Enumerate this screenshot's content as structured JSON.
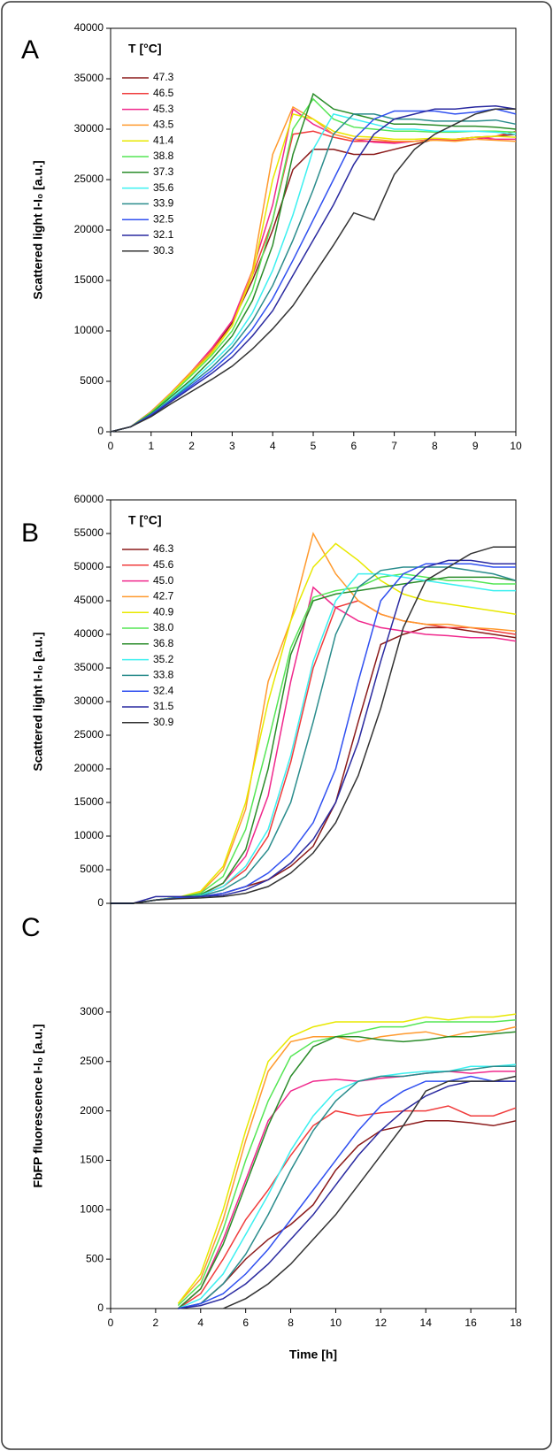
{
  "chart_data": [
    {
      "type": "line",
      "panel": "A",
      "legend_title": "T [°C]",
      "ylabel": "Scattered light I-I₀  [a.u.]",
      "x": [
        0,
        0.5,
        1,
        1.5,
        2,
        2.5,
        3,
        3.5,
        4,
        4.5,
        5,
        5.5,
        6,
        6.5,
        7,
        7.5,
        8,
        8.5,
        9,
        9.5,
        10
      ],
      "xlim": [
        0,
        10
      ],
      "xticks": [
        0,
        1,
        2,
        3,
        4,
        5,
        6,
        7,
        8,
        9,
        10
      ],
      "ylim": [
        0,
        40000
      ],
      "yticks": [
        0,
        5000,
        10000,
        15000,
        20000,
        25000,
        30000,
        35000,
        40000
      ],
      "series": [
        {
          "name": "47.3",
          "color": "#8b1a1a",
          "values": [
            0,
            500,
            2000,
            3800,
            5800,
            8000,
            10800,
            15000,
            20000,
            26000,
            28000,
            28000,
            27500,
            27500,
            28000,
            28500,
            29000,
            29000,
            29200,
            29300,
            29500
          ]
        },
        {
          "name": "46.5",
          "color": "#f03c3c",
          "values": [
            0,
            500,
            2000,
            3900,
            6000,
            8200,
            11000,
            15500,
            21000,
            29500,
            29800,
            29200,
            28800,
            28800,
            28700,
            28800,
            29000,
            28900,
            29000,
            29300,
            29800
          ]
        },
        {
          "name": "45.3",
          "color": "#f0288c",
          "values": [
            0,
            500,
            2000,
            3900,
            6000,
            8300,
            11000,
            16000,
            22500,
            32000,
            30500,
            29500,
            29000,
            28700,
            28600,
            28800,
            29000,
            29000,
            29200,
            29000,
            29000
          ]
        },
        {
          "name": "43.5",
          "color": "#ff9a2e",
          "values": [
            0,
            500,
            2000,
            3900,
            6000,
            8000,
            10500,
            16000,
            27500,
            32200,
            31000,
            29500,
            29000,
            29000,
            28800,
            28800,
            28900,
            28800,
            29000,
            28900,
            28800
          ]
        },
        {
          "name": "41.4",
          "color": "#e8e800",
          "values": [
            0,
            500,
            1900,
            3800,
            5800,
            7800,
            10500,
            15500,
            25000,
            31500,
            31000,
            29800,
            29300,
            29200,
            29000,
            29000,
            29100,
            29000,
            29200,
            29300,
            29200
          ]
        },
        {
          "name": "38.8",
          "color": "#55e655",
          "values": [
            0,
            500,
            1900,
            3700,
            5600,
            7600,
            10000,
            14000,
            21000,
            30000,
            33000,
            31000,
            30200,
            30000,
            29800,
            29800,
            29700,
            29700,
            29800,
            29800,
            29700
          ]
        },
        {
          "name": "37.3",
          "color": "#2a8c2a",
          "values": [
            0,
            500,
            1800,
            3500,
            5200,
            7200,
            9500,
            13000,
            18500,
            27500,
            33500,
            32000,
            31500,
            31000,
            30500,
            30500,
            30400,
            30300,
            30300,
            30200,
            30000
          ]
        },
        {
          "name": "35.6",
          "color": "#3cf0f0",
          "values": [
            0,
            500,
            1700,
            3300,
            5000,
            6800,
            8800,
            11800,
            16000,
            21500,
            28000,
            31500,
            31000,
            30500,
            30000,
            30000,
            29800,
            29800,
            29800,
            29700,
            29500
          ]
        },
        {
          "name": "33.9",
          "color": "#2a8c8c",
          "values": [
            0,
            500,
            1700,
            3200,
            4800,
            6400,
            8400,
            11000,
            14500,
            19000,
            24000,
            29500,
            31500,
            31500,
            31000,
            31000,
            30800,
            30800,
            30800,
            30900,
            30500
          ]
        },
        {
          "name": "32.5",
          "color": "#3050f0",
          "values": [
            0,
            500,
            1700,
            3100,
            4600,
            6100,
            7900,
            10200,
            13200,
            17000,
            21000,
            25000,
            29000,
            31000,
            31800,
            31800,
            31800,
            31500,
            31700,
            32000,
            31500
          ]
        },
        {
          "name": "32.1",
          "color": "#2a2aa0",
          "values": [
            0,
            500,
            1600,
            3000,
            4400,
            5800,
            7400,
            9500,
            12000,
            15500,
            19000,
            22500,
            26500,
            29500,
            31000,
            31500,
            32000,
            32000,
            32200,
            32300,
            32000
          ]
        },
        {
          "name": "30.3",
          "color": "#333333",
          "values": [
            0,
            500,
            1500,
            2800,
            4000,
            5200,
            6500,
            8200,
            10200,
            12500,
            15500,
            18500,
            21700,
            21000,
            25500,
            28000,
            29500,
            30500,
            31500,
            32000,
            32000
          ]
        }
      ]
    },
    {
      "type": "line",
      "panel": "B",
      "legend_title": "T [°C]",
      "ylabel": "Scattered light I-I₀  [a.u.]",
      "x": [
        0,
        1,
        2,
        3,
        4,
        5,
        6,
        7,
        8,
        9,
        10,
        11,
        12,
        13,
        14,
        15,
        16,
        17,
        18
      ],
      "xlim": [
        0,
        18
      ],
      "ylim": [
        0,
        60000
      ],
      "yticks": [
        0,
        5000,
        10000,
        15000,
        20000,
        25000,
        30000,
        35000,
        40000,
        45000,
        50000,
        55000,
        60000
      ],
      "series": [
        {
          "name": "46.3",
          "color": "#8b1a1a",
          "values": [
            0,
            0,
            500,
            800,
            1000,
            1500,
            2500,
            3500,
            5500,
            8500,
            15000,
            27000,
            38500,
            40000,
            41000,
            41000,
            40500,
            40000,
            39500
          ]
        },
        {
          "name": "45.6",
          "color": "#f03c3c",
          "values": [
            0,
            0,
            500,
            800,
            1200,
            2500,
            5000,
            10000,
            21000,
            35000,
            44000,
            45000,
            43000,
            42000,
            41500,
            41000,
            41000,
            40500,
            40000
          ]
        },
        {
          "name": "45.0",
          "color": "#f0288c",
          "values": [
            0,
            0,
            500,
            800,
            1200,
            3000,
            7000,
            16000,
            33000,
            47000,
            44000,
            42000,
            41000,
            40500,
            40000,
            39800,
            39500,
            39500,
            39000
          ]
        },
        {
          "name": "42.7",
          "color": "#ff9a2e",
          "values": [
            0,
            0,
            500,
            900,
            1600,
            5000,
            14000,
            33000,
            42000,
            55000,
            49000,
            45000,
            43000,
            42000,
            41500,
            41500,
            41000,
            40800,
            40500
          ]
        },
        {
          "name": "40.9",
          "color": "#e8e800",
          "values": [
            0,
            0,
            500,
            900,
            1800,
            5500,
            15000,
            30000,
            42000,
            50000,
            53500,
            51000,
            48000,
            46000,
            45000,
            44500,
            44000,
            43500,
            43000
          ]
        },
        {
          "name": "38.0",
          "color": "#55e655",
          "values": [
            0,
            0,
            500,
            900,
            1500,
            4000,
            11000,
            24000,
            38000,
            45500,
            46500,
            47000,
            48500,
            49000,
            48500,
            48000,
            48000,
            47500,
            47500
          ]
        },
        {
          "name": "36.8",
          "color": "#2a8c2a",
          "values": [
            0,
            0,
            500,
            900,
            1300,
            3000,
            8000,
            20000,
            37000,
            45000,
            46000,
            46500,
            47000,
            47500,
            48000,
            48500,
            48500,
            48500,
            48000
          ]
        },
        {
          "name": "35.2",
          "color": "#3cf0f0",
          "values": [
            0,
            0,
            500,
            800,
            1200,
            2500,
            5500,
            11000,
            22000,
            36000,
            45000,
            49000,
            49000,
            48500,
            48000,
            47500,
            47000,
            46500,
            46500
          ]
        },
        {
          "name": "33.8",
          "color": "#2a8c8c",
          "values": [
            0,
            0,
            500,
            800,
            1100,
            2000,
            4000,
            8000,
            15000,
            27000,
            40000,
            47000,
            49500,
            50000,
            50000,
            50000,
            49500,
            49000,
            48000
          ]
        },
        {
          "name": "32.4",
          "color": "#3050f0",
          "values": [
            0,
            0,
            500,
            800,
            1000,
            1500,
            2500,
            4500,
            7500,
            12000,
            20000,
            33000,
            45000,
            49000,
            50500,
            50500,
            50500,
            50000,
            50000
          ]
        },
        {
          "name": "31.5",
          "color": "#2a2aa0",
          "values": [
            0,
            0,
            1000,
            1000,
            1000,
            1200,
            2000,
            3500,
            6000,
            9500,
            15000,
            24000,
            36000,
            47000,
            50000,
            51000,
            51000,
            50500,
            50500
          ]
        },
        {
          "name": "30.9",
          "color": "#333333",
          "values": [
            0,
            0,
            500,
            700,
            800,
            1000,
            1500,
            2500,
            4500,
            7500,
            12000,
            19000,
            29000,
            41000,
            48000,
            50000,
            52000,
            53000,
            53000
          ]
        }
      ]
    },
    {
      "type": "line",
      "panel": "C",
      "ylabel": "FbFP fluorescence I-I₀  [a.u.]",
      "xlabel": "Time  [h]",
      "x": [
        0,
        1,
        2,
        3,
        4,
        5,
        6,
        7,
        8,
        9,
        10,
        11,
        12,
        13,
        14,
        15,
        16,
        17,
        18
      ],
      "xlim": [
        0,
        18
      ],
      "xticks": [
        0,
        2,
        4,
        6,
        8,
        10,
        12,
        14,
        16,
        18
      ],
      "ylim": [
        0,
        4100
      ],
      "yticks": [
        0,
        500,
        1000,
        1500,
        2000,
        2500,
        3000
      ],
      "series": [
        {
          "name": "46.3",
          "color": "#8b1a1a",
          "values": [
            null,
            null,
            null,
            0,
            50,
            250,
            500,
            700,
            850,
            1050,
            1400,
            1650,
            1800,
            1850,
            1900,
            1900,
            1880,
            1850,
            1900
          ]
        },
        {
          "name": "45.6",
          "color": "#f03c3c",
          "values": [
            null,
            null,
            null,
            0,
            150,
            500,
            900,
            1200,
            1550,
            1850,
            2000,
            1950,
            1980,
            2000,
            2000,
            2050,
            1950,
            1950,
            2030
          ]
        },
        {
          "name": "45.0",
          "color": "#f0288c",
          "values": [
            null,
            null,
            null,
            0,
            200,
            700,
            1300,
            1900,
            2200,
            2300,
            2320,
            2300,
            2330,
            2350,
            2380,
            2400,
            2380,
            2400,
            2400
          ]
        },
        {
          "name": "42.7",
          "color": "#ff9a2e",
          "values": [
            null,
            null,
            null,
            50,
            300,
            900,
            1700,
            2400,
            2700,
            2750,
            2750,
            2700,
            2750,
            2780,
            2800,
            2750,
            2800,
            2800,
            2850
          ]
        },
        {
          "name": "40.9",
          "color": "#e8e800",
          "values": [
            null,
            null,
            null,
            50,
            350,
            1000,
            1800,
            2500,
            2750,
            2850,
            2900,
            2900,
            2900,
            2900,
            2950,
            2920,
            2950,
            2950,
            2980
          ]
        },
        {
          "name": "38.0",
          "color": "#55e655",
          "values": [
            null,
            null,
            null,
            30,
            250,
            800,
            1500,
            2100,
            2550,
            2700,
            2750,
            2800,
            2850,
            2850,
            2900,
            2900,
            2900,
            2900,
            2920
          ]
        },
        {
          "name": "36.8",
          "color": "#2a8c2a",
          "values": [
            null,
            null,
            null,
            0,
            200,
            650,
            1250,
            1850,
            2350,
            2650,
            2750,
            2750,
            2720,
            2700,
            2720,
            2750,
            2750,
            2780,
            2800
          ]
        },
        {
          "name": "35.2",
          "color": "#3cf0f0",
          "values": [
            null,
            null,
            null,
            0,
            100,
            350,
            750,
            1150,
            1600,
            1950,
            2200,
            2300,
            2350,
            2380,
            2400,
            2400,
            2450,
            2450,
            2470
          ]
        },
        {
          "name": "33.8",
          "color": "#2a8c8c",
          "values": [
            null,
            null,
            null,
            0,
            50,
            250,
            550,
            950,
            1400,
            1800,
            2100,
            2300,
            2350,
            2350,
            2380,
            2400,
            2420,
            2450,
            2450
          ]
        },
        {
          "name": "32.4",
          "color": "#3050f0",
          "values": [
            null,
            null,
            null,
            0,
            50,
            150,
            350,
            600,
            900,
            1200,
            1500,
            1800,
            2050,
            2200,
            2300,
            2300,
            2350,
            2300,
            2300
          ]
        },
        {
          "name": "31.5",
          "color": "#2a2aa0",
          "values": [
            null,
            null,
            null,
            0,
            30,
            100,
            250,
            450,
            700,
            950,
            1250,
            1550,
            1800,
            2000,
            2150,
            2250,
            2300,
            2300,
            2300
          ]
        },
        {
          "name": "30.9",
          "color": "#333333",
          "values": [
            null,
            null,
            null,
            null,
            null,
            0,
            100,
            250,
            450,
            700,
            950,
            1250,
            1550,
            1850,
            2200,
            2300,
            2300,
            2300,
            2350
          ]
        }
      ]
    }
  ]
}
